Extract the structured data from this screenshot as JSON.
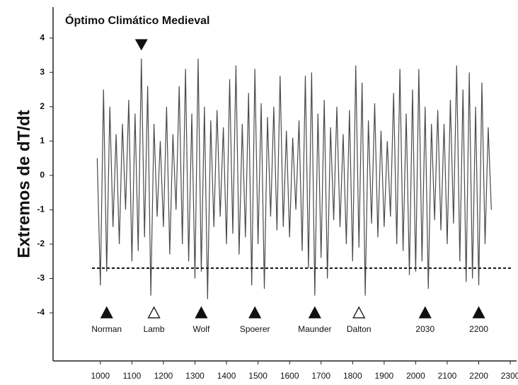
{
  "chart_data": {
    "type": "line",
    "ylabel": "Extremos de dT/dt",
    "annotation": {
      "text": "Óptimo Climático Medieval",
      "x": 1130,
      "y": 3.8
    },
    "threshold": -2.7,
    "xlim": [
      850,
      2320
    ],
    "ylim": [
      -5.4,
      4.9
    ],
    "xticks": [
      1000,
      1100,
      1200,
      1300,
      1400,
      1500,
      1600,
      1700,
      1800,
      1900,
      2000,
      2100,
      2200,
      2300
    ],
    "yticks": [
      -4,
      -3,
      -2,
      -1,
      0,
      1,
      2,
      3,
      4
    ],
    "x": [
      990,
      1000,
      1010,
      1020,
      1030,
      1040,
      1050,
      1060,
      1070,
      1080,
      1090,
      1100,
      1110,
      1120,
      1130,
      1140,
      1150,
      1160,
      1170,
      1180,
      1190,
      1200,
      1210,
      1220,
      1230,
      1240,
      1250,
      1260,
      1270,
      1280,
      1290,
      1300,
      1310,
      1320,
      1330,
      1340,
      1350,
      1360,
      1370,
      1380,
      1390,
      1400,
      1410,
      1420,
      1430,
      1440,
      1450,
      1460,
      1470,
      1480,
      1490,
      1500,
      1510,
      1520,
      1530,
      1540,
      1550,
      1560,
      1570,
      1580,
      1590,
      1600,
      1610,
      1620,
      1630,
      1640,
      1650,
      1660,
      1670,
      1680,
      1690,
      1700,
      1710,
      1720,
      1730,
      1740,
      1750,
      1760,
      1770,
      1780,
      1790,
      1800,
      1810,
      1820,
      1830,
      1840,
      1850,
      1860,
      1870,
      1880,
      1890,
      1900,
      1910,
      1920,
      1930,
      1940,
      1950,
      1960,
      1970,
      1980,
      1990,
      2000,
      2010,
      2020,
      2030,
      2040,
      2050,
      2060,
      2070,
      2080,
      2090,
      2100,
      2110,
      2120,
      2130,
      2140,
      2150,
      2160,
      2170,
      2180,
      2190,
      2200,
      2210,
      2220,
      2230,
      2240
    ],
    "series": [
      {
        "color": "#4a4a4a",
        "values": [
          0.5,
          -3.2,
          2.5,
          -2.8,
          2.0,
          -1.5,
          1.2,
          -2.0,
          1.5,
          -1.0,
          2.2,
          -2.5,
          1.8,
          -2.2,
          3.4,
          -1.8,
          2.6,
          -3.5,
          1.5,
          -1.2,
          1.0,
          -1.5,
          2.0,
          -2.3,
          1.2,
          -1.0,
          2.6,
          -2.0,
          3.1,
          -2.5,
          1.8,
          -3.0,
          3.4,
          -2.8,
          2.0,
          -3.6,
          1.6,
          -1.5,
          1.9,
          -1.2,
          1.4,
          -2.0,
          2.8,
          -1.7,
          3.2,
          -2.3,
          1.5,
          -1.8,
          2.4,
          -3.2,
          3.1,
          -2.0,
          2.1,
          -3.3,
          1.7,
          -1.2,
          2.0,
          -1.6,
          2.9,
          -1.5,
          1.3,
          -1.8,
          1.1,
          -1.0,
          1.6,
          -2.2,
          2.9,
          -2.7,
          3.0,
          -3.5,
          1.8,
          -2.4,
          2.2,
          -3.0,
          1.4,
          -1.3,
          2.0,
          -1.5,
          1.2,
          -2.0,
          1.9,
          -2.5,
          3.2,
          -2.1,
          2.7,
          -3.5,
          1.6,
          -1.4,
          2.1,
          -1.8,
          1.3,
          -1.5,
          1.0,
          -1.2,
          2.4,
          -2.0,
          3.1,
          -2.2,
          1.8,
          -2.9,
          2.5,
          -2.8,
          3.1,
          -2.5,
          2.0,
          -3.3,
          1.5,
          -1.3,
          1.9,
          -1.6,
          1.5,
          -2.0,
          2.2,
          -1.4,
          3.2,
          -2.5,
          2.5,
          -3.1,
          3.0,
          -3.0,
          2.0,
          -3.2,
          2.7,
          -2.0,
          1.4,
          -1.0
        ]
      }
    ],
    "events": [
      {
        "label": "Norman",
        "x": 1020,
        "y": -4,
        "filled": true
      },
      {
        "label": "Lamb",
        "x": 1170,
        "y": -4,
        "filled": false
      },
      {
        "label": "Wolf",
        "x": 1320,
        "y": -4,
        "filled": true
      },
      {
        "label": "Spoerer",
        "x": 1490,
        "y": -4,
        "filled": true
      },
      {
        "label": "Maunder",
        "x": 1680,
        "y": -4,
        "filled": true
      },
      {
        "label": "Dalton",
        "x": 1820,
        "y": -4,
        "filled": false
      },
      {
        "label": "2030",
        "x": 2030,
        "y": -4,
        "filled": true
      },
      {
        "label": "2200",
        "x": 2200,
        "y": -4,
        "filled": true
      }
    ]
  }
}
